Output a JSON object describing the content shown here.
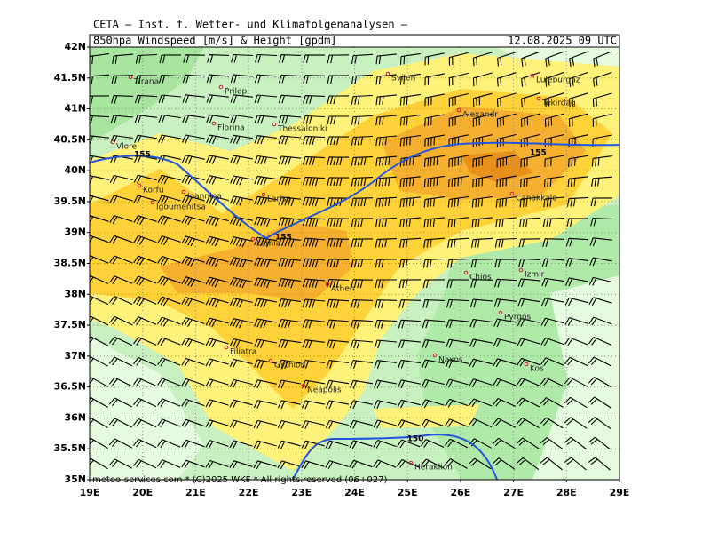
{
  "header": {
    "institute": "CETA — Inst. f. Wetter- und Klimafolgenanalysen —",
    "title": "850hpa Windspeed [m/s] & Height [gpdm]",
    "valid_time": "12.08.2025 09 UTC"
  },
  "lat_labels": [
    "42N",
    "41.5N",
    "41N",
    "40.5N",
    "40N",
    "39.5N",
    "39N",
    "38.5N",
    "38N",
    "37.5N",
    "37N",
    "36.5N",
    "36N",
    "35.5N",
    "35N"
  ],
  "lon_labels": [
    "19E",
    "20E",
    "21E",
    "22E",
    "23E",
    "24E",
    "25E",
    "26E",
    "27E",
    "28E",
    "29E"
  ],
  "cities": [
    {
      "name": "Tirana"
    },
    {
      "name": "Prilep"
    },
    {
      "name": "Florina"
    },
    {
      "name": "Thessaloniki"
    },
    {
      "name": "Vlore"
    },
    {
      "name": "Korfu"
    },
    {
      "name": "Ioannina"
    },
    {
      "name": "Igoumenitsa"
    },
    {
      "name": "Larisa"
    },
    {
      "name": "Lamia"
    },
    {
      "name": "Athen"
    },
    {
      "name": "Chios"
    },
    {
      "name": "Izmir"
    },
    {
      "name": "Pyrgos"
    },
    {
      "name": "Naxos"
    },
    {
      "name": "Kos"
    },
    {
      "name": "Filiatra"
    },
    {
      "name": "Gythion"
    },
    {
      "name": "Neapolis"
    },
    {
      "name": "Heraklion"
    },
    {
      "name": "Alexandr"
    },
    {
      "name": "Tekirdag"
    },
    {
      "name": "Luleburgaz"
    },
    {
      "name": "Svilen"
    },
    {
      "name": "Canakkale"
    }
  ],
  "contour_labels": [
    "155",
    "155",
    "155",
    "150"
  ],
  "footer": "meteo-services.com * (C)2025 WKF * All rights reserved (06+027)"
}
